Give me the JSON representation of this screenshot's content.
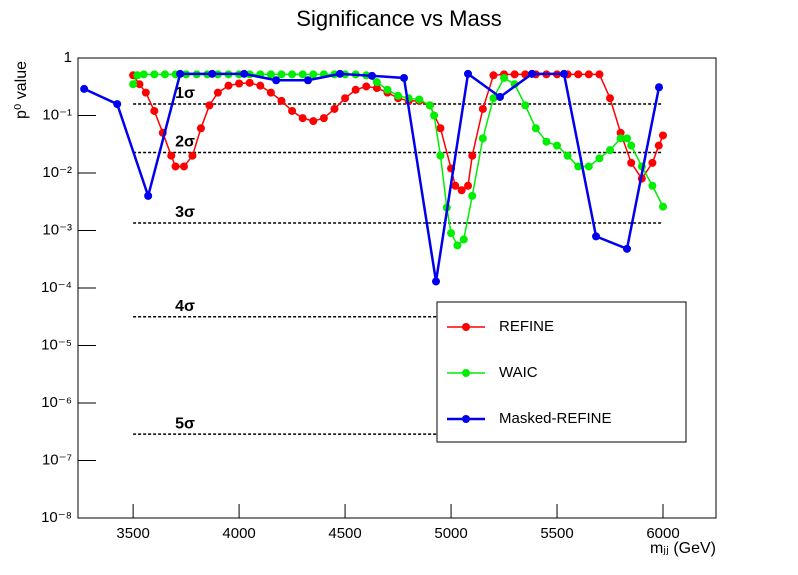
{
  "chart_data": {
    "type": "line",
    "title": "Significance vs Mass",
    "x_label": "mⱼⱼ (GeV)",
    "y_label": "p⁰ value",
    "log_y": true,
    "xlim": [
      3240,
      6250
    ],
    "ylim": [
      1e-08,
      1
    ],
    "xticks": [
      3500,
      4000,
      4500,
      5000,
      5500,
      6000
    ],
    "yticks": [
      {
        "value": 1e-08,
        "label": "10⁻⁸"
      },
      {
        "value": 1e-07,
        "label": "10⁻⁷"
      },
      {
        "value": 1e-06,
        "label": "10⁻⁶"
      },
      {
        "value": 1e-05,
        "label": "10⁻⁵"
      },
      {
        "value": 0.0001,
        "label": "10⁻⁴"
      },
      {
        "value": 0.001,
        "label": "10⁻³"
      },
      {
        "value": 0.01,
        "label": "10⁻²"
      },
      {
        "value": 0.1,
        "label": "10⁻¹"
      },
      1
    ],
    "sigma_lines": {
      "x_range": [
        3500,
        6000
      ],
      "lines": [
        {
          "label": "1σ",
          "value": 0.1587
        },
        {
          "label": "2σ",
          "value": 0.02275
        },
        {
          "label": "3σ",
          "value": 0.00135
        },
        {
          "label": "4σ",
          "value": 3.17e-05
        },
        {
          "label": "5σ",
          "value": 2.87e-07
        }
      ]
    },
    "legend": "lower right",
    "series": [
      {
        "name": "REFINE",
        "color": "#ff0000",
        "x": [
          3500,
          3530,
          3560,
          3600,
          3640,
          3680,
          3700,
          3740,
          3780,
          3820,
          3860,
          3900,
          3950,
          4000,
          4050,
          4100,
          4150,
          4200,
          4250,
          4300,
          4350,
          4400,
          4450,
          4500,
          4550,
          4600,
          4650,
          4700,
          4750,
          4800,
          4850,
          4900,
          4950,
          5000,
          5020,
          5050,
          5080,
          5100,
          5150,
          5200,
          5250,
          5300,
          5350,
          5400,
          5450,
          5500,
          5550,
          5600,
          5650,
          5700,
          5750,
          5800,
          5850,
          5900,
          5950,
          5980,
          6000
        ],
        "values": [
          0.5,
          0.35,
          0.25,
          0.12,
          0.05,
          0.02,
          0.013,
          0.013,
          0.02,
          0.06,
          0.15,
          0.25,
          0.33,
          0.36,
          0.37,
          0.33,
          0.25,
          0.18,
          0.12,
          0.09,
          0.08,
          0.09,
          0.13,
          0.2,
          0.28,
          0.32,
          0.3,
          0.25,
          0.2,
          0.18,
          0.18,
          0.15,
          0.06,
          0.012,
          0.006,
          0.005,
          0.006,
          0.02,
          0.13,
          0.5,
          0.52,
          0.52,
          0.52,
          0.52,
          0.52,
          0.52,
          0.52,
          0.52,
          0.52,
          0.52,
          0.2,
          0.05,
          0.015,
          0.008,
          0.015,
          0.03,
          0.045
        ]
      },
      {
        "name": "WAIC",
        "color": "#00ee00",
        "x": [
          3500,
          3520,
          3550,
          3600,
          3650,
          3700,
          3750,
          3800,
          3850,
          3900,
          3950,
          4000,
          4050,
          4100,
          4150,
          4200,
          4250,
          4300,
          4350,
          4400,
          4450,
          4500,
          4550,
          4600,
          4650,
          4700,
          4750,
          4800,
          4850,
          4900,
          4920,
          4950,
          4980,
          5000,
          5030,
          5060,
          5100,
          5150,
          5200,
          5250,
          5300,
          5350,
          5400,
          5450,
          5500,
          5550,
          5600,
          5650,
          5700,
          5750,
          5800,
          5830,
          5850,
          5900,
          5950,
          6000
        ],
        "values": [
          0.35,
          0.5,
          0.52,
          0.52,
          0.52,
          0.52,
          0.52,
          0.52,
          0.52,
          0.52,
          0.52,
          0.52,
          0.52,
          0.52,
          0.52,
          0.52,
          0.52,
          0.52,
          0.52,
          0.52,
          0.52,
          0.52,
          0.52,
          0.5,
          0.38,
          0.28,
          0.22,
          0.2,
          0.19,
          0.15,
          0.1,
          0.02,
          0.0025,
          0.0009,
          0.00055,
          0.0007,
          0.004,
          0.04,
          0.2,
          0.45,
          0.35,
          0.15,
          0.06,
          0.035,
          0.03,
          0.02,
          0.013,
          0.013,
          0.018,
          0.025,
          0.04,
          0.04,
          0.03,
          0.013,
          0.006,
          0.0026
        ]
      },
      {
        "name": "Masked-REFINE",
        "color": "#0000ee",
        "x": [
          3269,
          3425,
          3571,
          3722,
          3873,
          4024,
          4175,
          4325,
          4476,
          4627,
          4778,
          4929,
          5080,
          5231,
          5382,
          5533,
          5684,
          5830,
          5981
        ],
        "values": [
          0.29,
          0.158,
          0.004,
          0.53,
          0.53,
          0.53,
          0.41,
          0.41,
          0.53,
          0.49,
          0.45,
          0.00013,
          0.53,
          0.21,
          0.53,
          0.53,
          0.00079,
          0.00048,
          0.31
        ]
      }
    ]
  }
}
